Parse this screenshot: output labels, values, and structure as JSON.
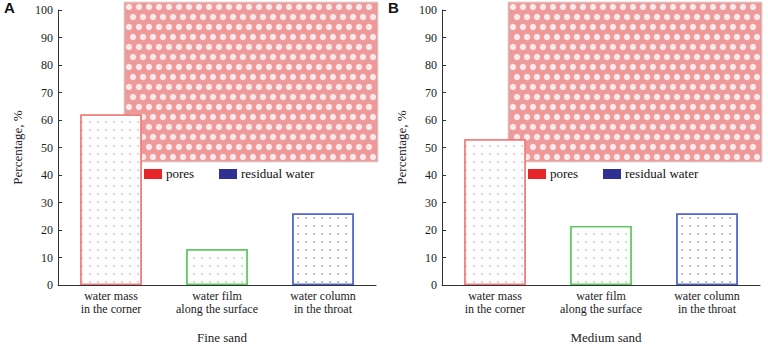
{
  "chart_data": [
    {
      "type": "bar",
      "panel": "A",
      "title": "Fine sand",
      "y_label": "Percentage, %",
      "categories": [
        "water mass\nin the corner",
        "water film\nalong the surface",
        "water column\nin the throat"
      ],
      "values": [
        62,
        13,
        26
      ],
      "colors": [
        "#f07a78",
        "#5cc85c",
        "#4a62c8"
      ],
      "ylim": [
        0,
        100
      ],
      "yticks": [
        0,
        10,
        20,
        30,
        40,
        50,
        60,
        70,
        80,
        90,
        100
      ],
      "grid": false,
      "inset_legend": [
        {
          "name": "pores",
          "color": "#e8262a"
        },
        {
          "name": "residual water",
          "color": "#2e3192"
        }
      ]
    },
    {
      "type": "bar",
      "panel": "B",
      "title": "Medium sand",
      "y_label": "Percentage, %",
      "categories": [
        "water mass\nin the corner",
        "water film\nalong the surface",
        "water column\nin the throat"
      ],
      "values": [
        53,
        21.5,
        26
      ],
      "colors": [
        "#f07a78",
        "#5cc85c",
        "#4a62c8"
      ],
      "ylim": [
        0,
        100
      ],
      "yticks": [
        0,
        10,
        20,
        30,
        40,
        50,
        60,
        70,
        80,
        90,
        100
      ],
      "grid": false,
      "inset_legend": [
        {
          "name": "pores",
          "color": "#e8262a"
        },
        {
          "name": "residual water",
          "color": "#2e3192"
        }
      ]
    }
  ]
}
